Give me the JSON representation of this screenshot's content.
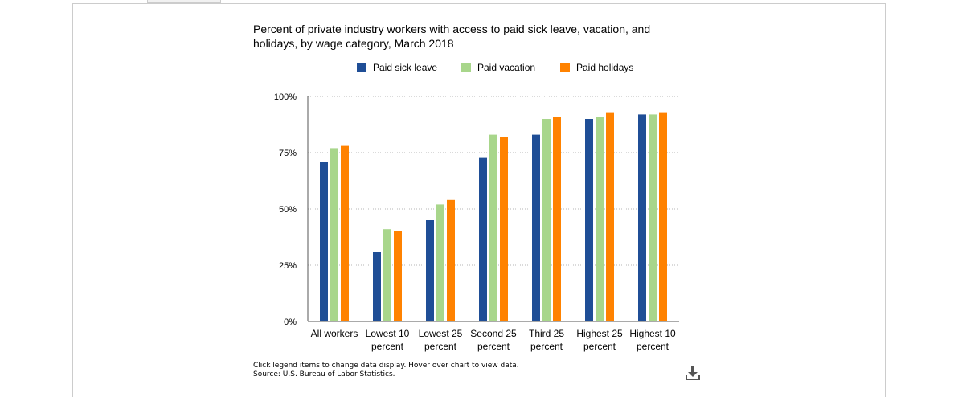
{
  "chart_data": {
    "type": "bar",
    "title": "Percent of private industry workers with access to paid sick leave, vacation, and holidays, by wage category, March 2018",
    "categories": [
      "All workers",
      "Lowest 10 percent",
      "Lowest 25 percent",
      "Second 25 percent",
      "Third 25 percent",
      "Highest 25 percent",
      "Highest 10 percent"
    ],
    "category_lines": [
      [
        "All workers"
      ],
      [
        "Lowest 10",
        "percent"
      ],
      [
        "Lowest 25",
        "percent"
      ],
      [
        "Second 25",
        "percent"
      ],
      [
        "Third 25",
        "percent"
      ],
      [
        "Highest 25",
        "percent"
      ],
      [
        "Highest 10",
        "percent"
      ]
    ],
    "series": [
      {
        "name": "Paid sick leave",
        "color": "#1f4e96",
        "values": [
          71,
          31,
          45,
          73,
          83,
          90,
          92
        ]
      },
      {
        "name": "Paid vacation",
        "color": "#a8d68b",
        "values": [
          77,
          41,
          52,
          83,
          90,
          91,
          92
        ]
      },
      {
        "name": "Paid holidays",
        "color": "#ff8200",
        "values": [
          78,
          40,
          54,
          82,
          91,
          93,
          93
        ]
      }
    ],
    "ylim": [
      0,
      100
    ],
    "yticks": [
      0,
      25,
      50,
      75,
      100
    ],
    "ytick_labels": [
      "0%",
      "25%",
      "50%",
      "75%",
      "100%"
    ],
    "xlabel": "",
    "ylabel": "",
    "grid": true,
    "legend_position": "top"
  },
  "footnote": {
    "line1": "Click legend items to change data display. Hover over chart to view data.",
    "line2": "Source: U.S. Bureau of Labor Statistics."
  },
  "download_icon": "download-icon"
}
